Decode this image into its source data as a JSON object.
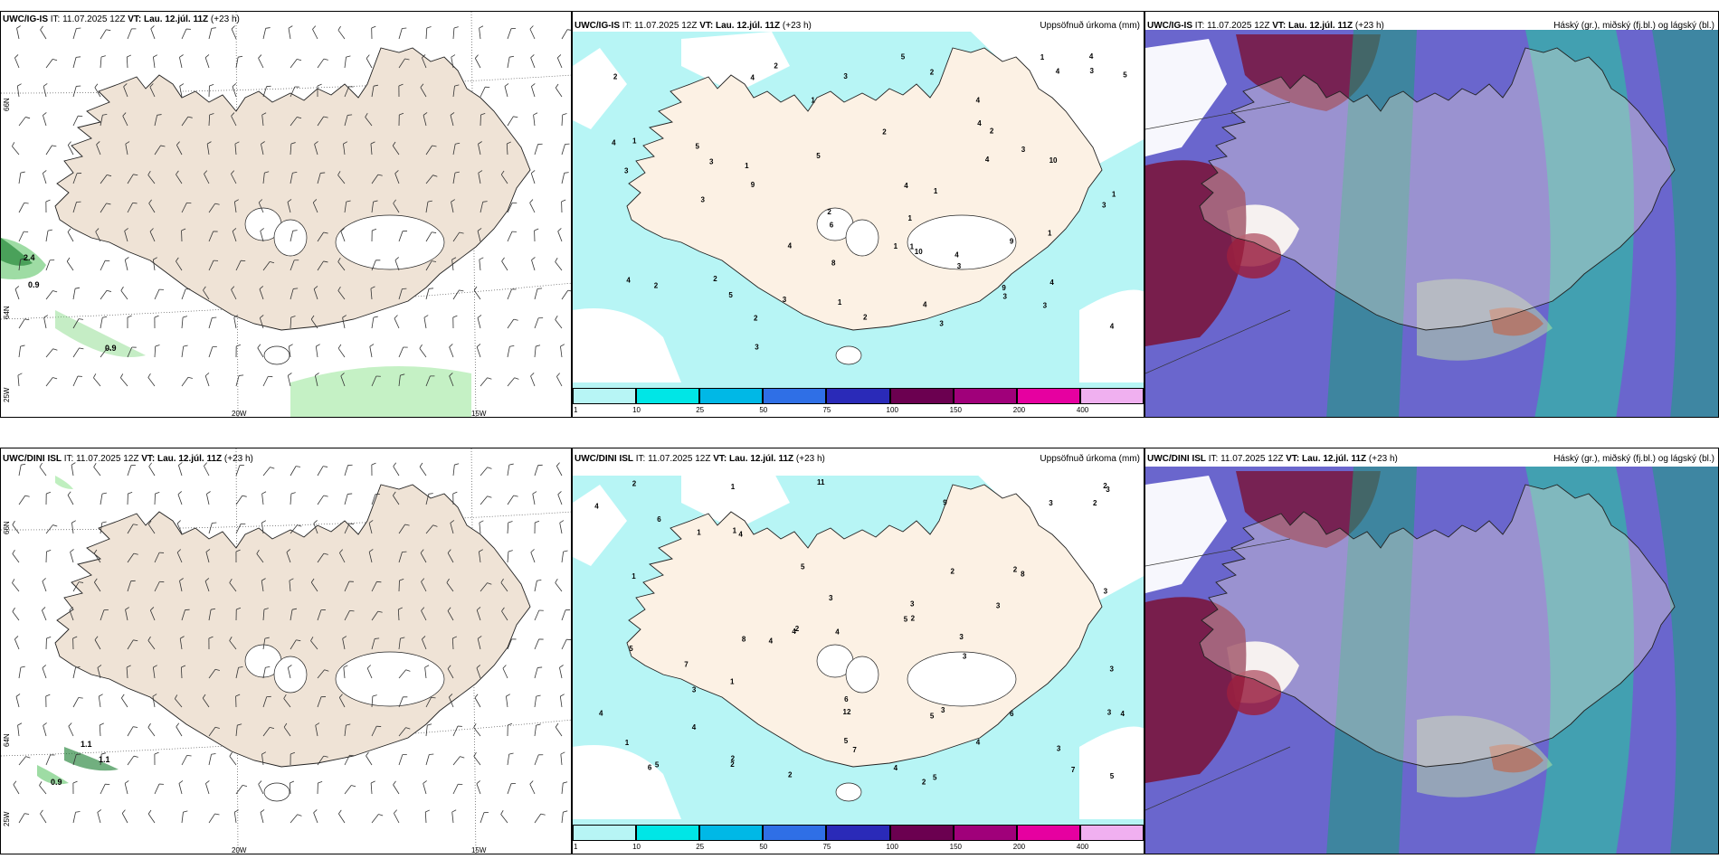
{
  "top": {
    "wind": {
      "title_model": "UWC/IG-IS",
      "title_rest": "IT: 11.07.2025 12Z",
      "title_vt": "VT: Lau. 12.júl. 11Z",
      "title_lead": "(+23 h)"
    },
    "precip": {
      "title_model": "UWC/IG-IS",
      "title_rest": "IT: 11.07.2025 12Z",
      "title_vt": "VT: Lau. 12.júl. 11Z",
      "title_lead": "(+23 h)",
      "right_title": "Uppsöfnuð úrkoma (mm)"
    },
    "cloud": {
      "title_model": "UWC/IG-IS",
      "title_rest": "IT: 11.07.2025 12Z",
      "title_vt": "VT: Lau. 12.júl. 11Z",
      "title_lead": "(+23 h)",
      "right_title": "Háský (gr.), miðský (fj.bl.) og lágský (bl.)"
    }
  },
  "bottom": {
    "wind": {
      "title_model": "UWC/DINI ISL",
      "title_rest": "IT: 11.07.2025 12Z",
      "title_vt": "VT: Lau. 12.júl. 11Z",
      "title_lead": "(+23 h)"
    },
    "precip": {
      "title_model": "UWC/DINI ISL",
      "title_rest": "IT: 11.07.2025 12Z",
      "title_vt": "VT: Lau. 12.júl. 11Z",
      "title_lead": "(+23 h)",
      "right_title": "Uppsöfnuð úrkoma (mm)"
    },
    "cloud": {
      "title_model": "UWC/DINI ISL",
      "title_rest": "IT: 11.07.2025 12Z",
      "title_vt": "VT: Lau. 12.júl. 11Z",
      "title_lead": "(+23 h)",
      "right_title": "Háský (gr.), miðský (fj.bl.) og lágský (bl.)"
    }
  },
  "axes": {
    "lon_labels": [
      "25W",
      "20W",
      "15W"
    ],
    "lat_labels": [
      "66N",
      "64N"
    ]
  },
  "legend": {
    "labels": [
      "1",
      "10",
      "25",
      "50",
      "75",
      "100",
      "150",
      "200",
      "400"
    ],
    "colors": [
      "#b7f5f5",
      "#00e6e6",
      "#00b8e6",
      "#2f6fe6",
      "#2a2ab8",
      "#6b0050",
      "#a0007a",
      "#e600a0",
      "#f0b0f0"
    ]
  },
  "wind_values": {
    "top": [
      "2.4",
      "0.9",
      "0.9"
    ],
    "bottom": [
      "1.1",
      "1.1",
      "0.9"
    ]
  },
  "precip_values": {
    "top": [
      "3",
      "4",
      "2",
      "5",
      "3",
      "4",
      "3",
      "9",
      "6",
      "5",
      "2",
      "4",
      "2",
      "1",
      "4",
      "1",
      "3",
      "4",
      "9",
      "10",
      "9",
      "10",
      "2",
      "3",
      "1",
      "2",
      "3",
      "3",
      "2",
      "1",
      "3",
      "4",
      "4",
      "3",
      "2",
      "1",
      "5",
      "1",
      "1",
      "4",
      "3",
      "4",
      "5",
      "4",
      "2",
      "1",
      "1",
      "8",
      "1",
      "3",
      "4",
      "2",
      "1",
      "4",
      "2",
      "4",
      "3",
      "5",
      "3",
      "4"
    ],
    "bottom": [
      "2",
      "2",
      "2",
      "4",
      "1",
      "6",
      "8",
      "7",
      "11",
      "5",
      "3",
      "7",
      "2",
      "12",
      "9",
      "5",
      "1",
      "2",
      "4",
      "4",
      "5",
      "3",
      "3",
      "6",
      "8",
      "7",
      "4",
      "3",
      "2",
      "3",
      "4",
      "5",
      "6",
      "2",
      "4",
      "3",
      "3",
      "1",
      "2",
      "3",
      "2",
      "3",
      "4",
      "5",
      "4",
      "3",
      "3",
      "4",
      "1",
      "5",
      "2",
      "3",
      "5",
      "6",
      "1",
      "2",
      "4",
      "3",
      "1",
      "5"
    ]
  }
}
